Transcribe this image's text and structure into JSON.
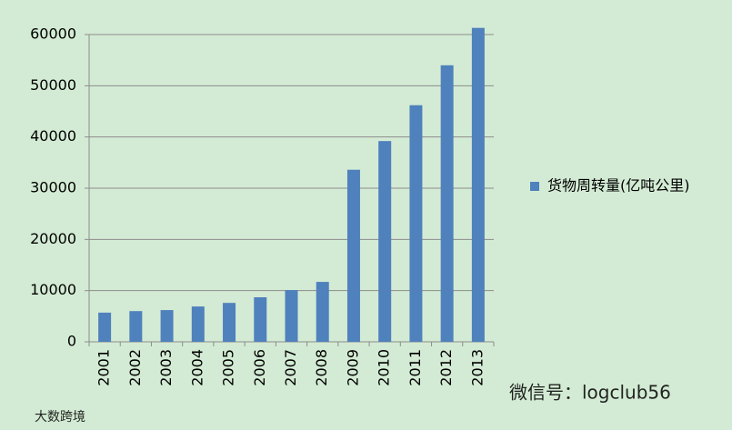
{
  "chart_data": {
    "type": "bar",
    "categories": [
      "2001",
      "2002",
      "2003",
      "2004",
      "2005",
      "2006",
      "2007",
      "2008",
      "2009",
      "2010",
      "2011",
      "2012",
      "2013"
    ],
    "series": [
      {
        "name": "货物周转量(亿吨公里)",
        "color": "#4f81bd",
        "values": [
          5700,
          6000,
          6200,
          6900,
          7600,
          8700,
          10100,
          11700,
          33600,
          39200,
          46200,
          54000,
          61300
        ]
      }
    ],
    "ylim": [
      0,
      60000
    ],
    "yticks": [
      0,
      10000,
      20000,
      30000,
      40000,
      50000,
      60000
    ],
    "grid": true,
    "legend": "right",
    "watermarks": [
      "微信号：logclub56",
      "大数跨境"
    ]
  }
}
